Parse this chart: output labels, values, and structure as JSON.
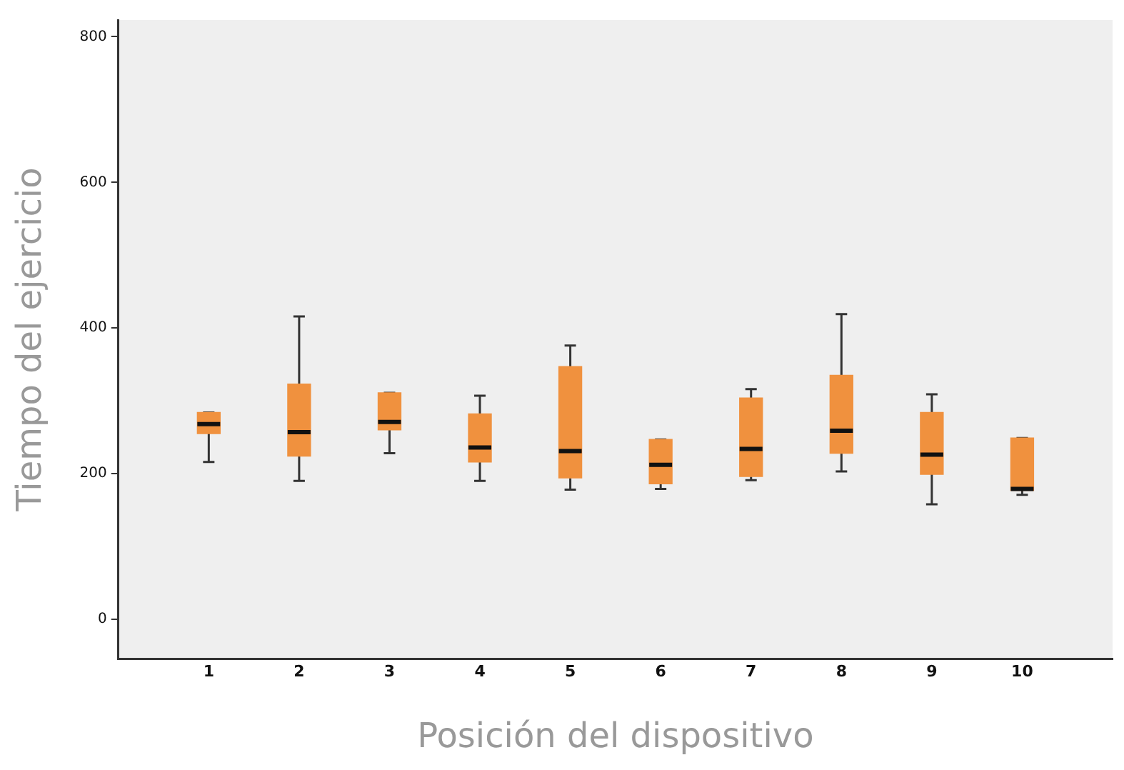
{
  "chart_data": {
    "type": "box",
    "xlabel": "Posición del dispositivo",
    "ylabel": "Tiempo del ejercicio",
    "categories": [
      "1",
      "2",
      "3",
      "4",
      "5",
      "6",
      "7",
      "8",
      "9",
      "10"
    ],
    "color": "#f0913e",
    "boxes": [
      {
        "low": 216,
        "q1": 255,
        "median": 268,
        "q3": 284,
        "high": 284
      },
      {
        "low": 190,
        "q1": 224,
        "median": 257,
        "q3": 323,
        "high": 416
      },
      {
        "low": 228,
        "q1": 260,
        "median": 271,
        "q3": 311,
        "high": 311
      },
      {
        "low": 190,
        "q1": 216,
        "median": 236,
        "q3": 282,
        "high": 307
      },
      {
        "low": 178,
        "q1": 194,
        "median": 231,
        "q3": 347,
        "high": 376
      },
      {
        "low": 179,
        "q1": 186,
        "median": 212,
        "q3": 247,
        "high": 247
      },
      {
        "low": 191,
        "q1": 196,
        "median": 234,
        "q3": 304,
        "high": 316
      },
      {
        "low": 203,
        "q1": 228,
        "median": 259,
        "q3": 335,
        "high": 419
      },
      {
        "low": 158,
        "q1": 199,
        "median": 226,
        "q3": 284,
        "high": 309
      },
      {
        "low": 171,
        "q1": 177,
        "median": 179,
        "q3": 249,
        "high": 249
      }
    ],
    "ylim": [
      -54,
      823
    ],
    "yticks": [
      0,
      200,
      400,
      600,
      800
    ],
    "grid": false,
    "legend": false
  }
}
